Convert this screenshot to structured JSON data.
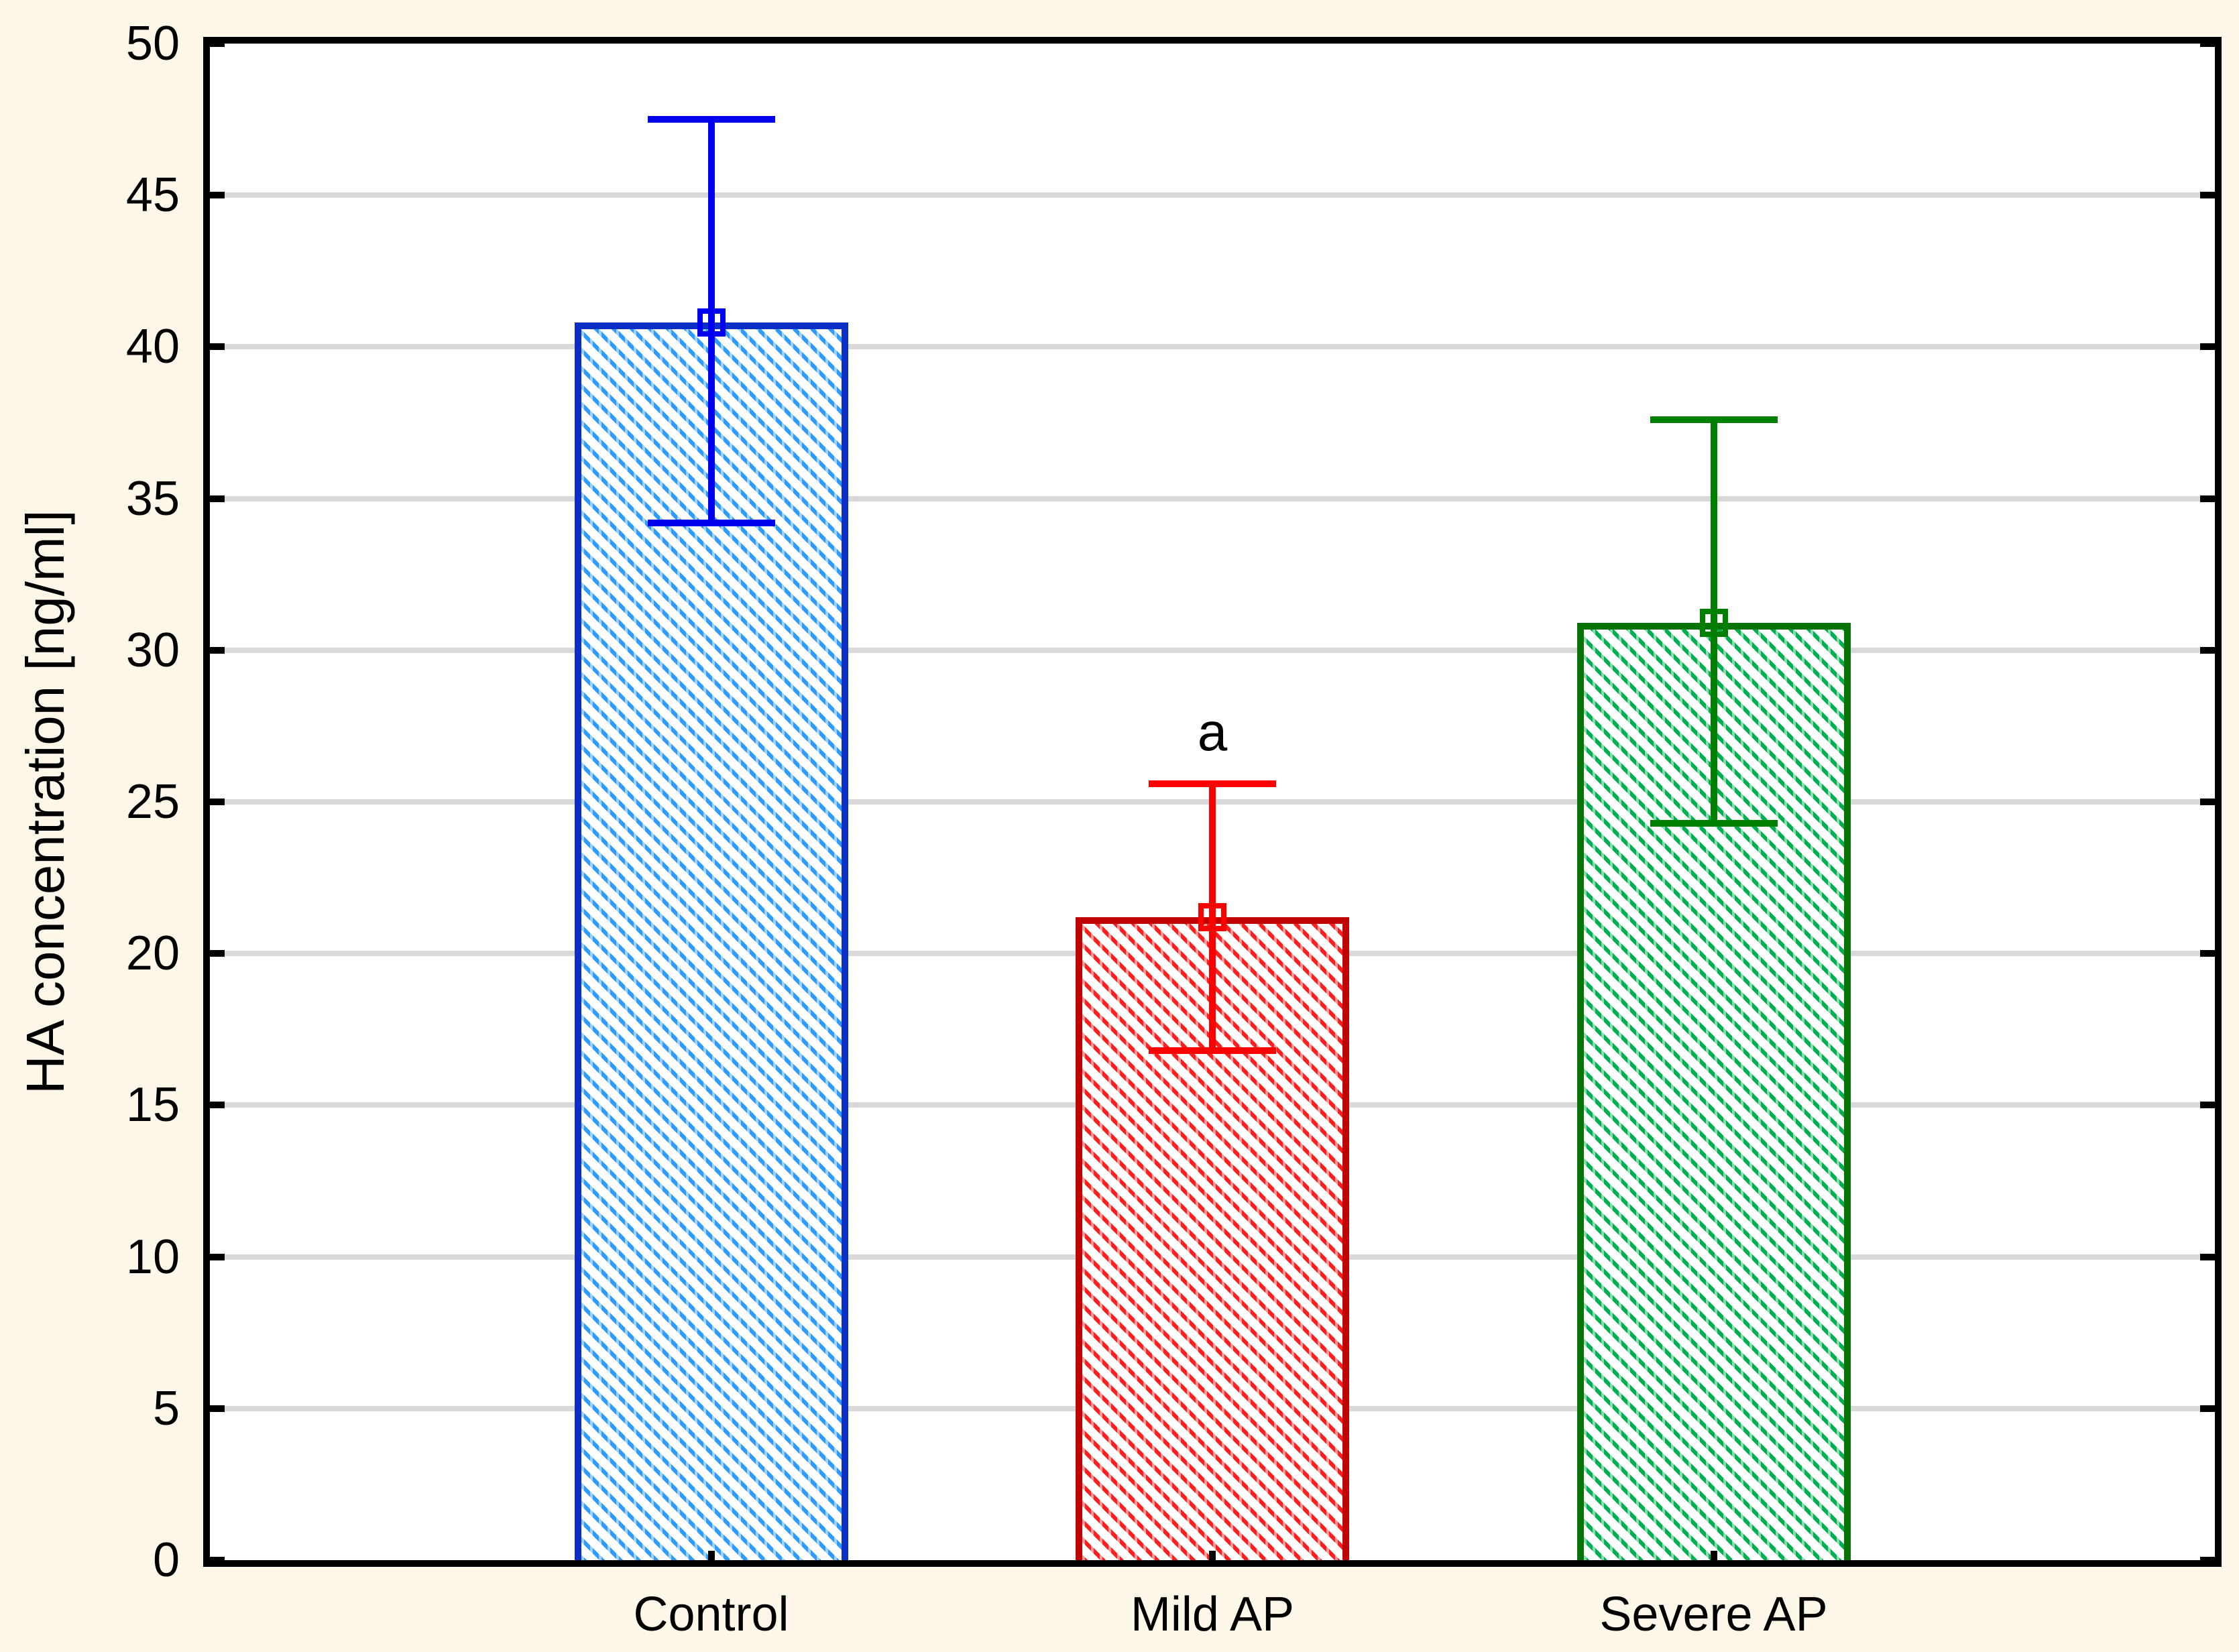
{
  "chart_data": {
    "type": "bar",
    "title": "",
    "xlabel": "",
    "ylabel": "HA concentration [ng/ml]",
    "ylim": [
      0,
      50
    ],
    "ytick_step": 5,
    "yticks": [
      0,
      5,
      10,
      15,
      20,
      25,
      30,
      35,
      40,
      45,
      50
    ],
    "grid": "horizontal",
    "legend_position": "none",
    "categories": [
      "Control",
      "Mild AP",
      "Severe AP"
    ],
    "series": [
      {
        "name": "HA concentration mean",
        "values": [
          40.8,
          21.2,
          30.9
        ],
        "whisker_low": [
          34.2,
          16.8,
          24.3
        ],
        "whisker_high": [
          47.5,
          25.6,
          37.6
        ],
        "marker": "open-square"
      }
    ],
    "annotations": [
      {
        "text": "a",
        "category_index": 1,
        "y": 27.3
      }
    ],
    "styles": {
      "background": "#fcf7e8",
      "plot_background": "#ffffff",
      "gridline_color": "#d9d9d9",
      "axis_color": "#000000",
      "bars": [
        {
          "category": "Control",
          "border": "#0a2ec6",
          "hatch": "#2e9bff",
          "error": "#0000f0"
        },
        {
          "category": "Mild AP",
          "border": "#c00404",
          "hatch": "#ff1f1f",
          "error": "#ff0000"
        },
        {
          "category": "Severe AP",
          "border": "#077307",
          "hatch": "#00b050",
          "error": "#008000"
        }
      ]
    }
  }
}
